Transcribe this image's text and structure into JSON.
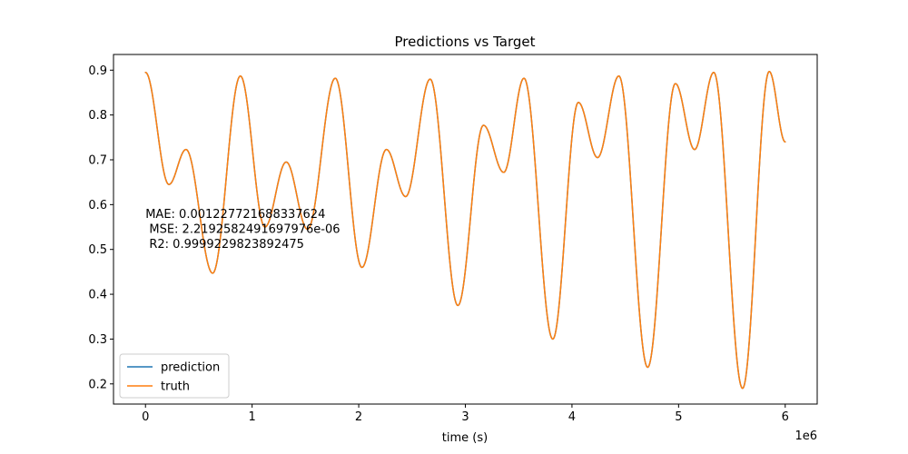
{
  "chart_data": {
    "type": "line",
    "title": "Predictions vs Target",
    "xlabel": "time (s)",
    "ylabel": "",
    "x_offset_label": "1e6",
    "xlim": [
      -0.3,
      6.3
    ],
    "ylim": [
      0.155,
      0.935
    ],
    "x_ticks": [
      0,
      1,
      2,
      3,
      4,
      5,
      6
    ],
    "x_tick_labels": [
      "0",
      "1",
      "2",
      "3",
      "4",
      "5",
      "6"
    ],
    "y_ticks": [
      0.2,
      0.3,
      0.4,
      0.5,
      0.6,
      0.7,
      0.8,
      0.9
    ],
    "y_tick_labels": [
      "0.2",
      "0.3",
      "0.4",
      "0.5",
      "0.6",
      "0.7",
      "0.8",
      "0.9"
    ],
    "grid": false,
    "legend_position": "lower-left",
    "annotation": {
      "lines": [
        "MAE: 0.0012277216883376​24",
        " MSE: 2.2192582491697976e-06",
        " R2: 0.9999229823892475"
      ],
      "x": 0,
      "y": 0.57
    },
    "extrema": [
      [
        0.0,
        0.895
      ],
      [
        0.22,
        0.645
      ],
      [
        0.38,
        0.723
      ],
      [
        0.63,
        0.447
      ],
      [
        0.89,
        0.887
      ],
      [
        1.12,
        0.55
      ],
      [
        1.32,
        0.695
      ],
      [
        1.52,
        0.545
      ],
      [
        1.78,
        0.882
      ],
      [
        2.03,
        0.46
      ],
      [
        2.26,
        0.723
      ],
      [
        2.44,
        0.618
      ],
      [
        2.67,
        0.88
      ],
      [
        2.93,
        0.375
      ],
      [
        3.17,
        0.777
      ],
      [
        3.36,
        0.672
      ],
      [
        3.55,
        0.882
      ],
      [
        3.82,
        0.3
      ],
      [
        4.06,
        0.828
      ],
      [
        4.24,
        0.705
      ],
      [
        4.44,
        0.887
      ],
      [
        4.71,
        0.237
      ],
      [
        4.97,
        0.87
      ],
      [
        5.15,
        0.723
      ],
      [
        5.33,
        0.895
      ],
      [
        5.6,
        0.19
      ],
      [
        5.85,
        0.897
      ],
      [
        6.0,
        0.74
      ]
    ],
    "series": [
      {
        "name": "prediction",
        "color": "#1f77b4"
      },
      {
        "name": "truth",
        "color": "#ff7f0e"
      }
    ]
  }
}
